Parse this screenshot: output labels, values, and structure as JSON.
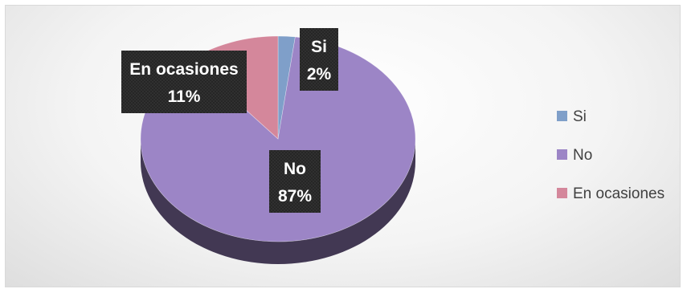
{
  "chart_data": {
    "type": "pie",
    "style": "3d",
    "legend_position": "right",
    "slices": [
      {
        "name": "Si",
        "value": 2,
        "label": "2%",
        "color": "#7f9fc9"
      },
      {
        "name": "No",
        "value": 87,
        "label": "87%",
        "color": "#9c85c6"
      },
      {
        "name": "En ocasiones",
        "value": 11,
        "label": "11%",
        "color": "#d4879b"
      }
    ]
  }
}
